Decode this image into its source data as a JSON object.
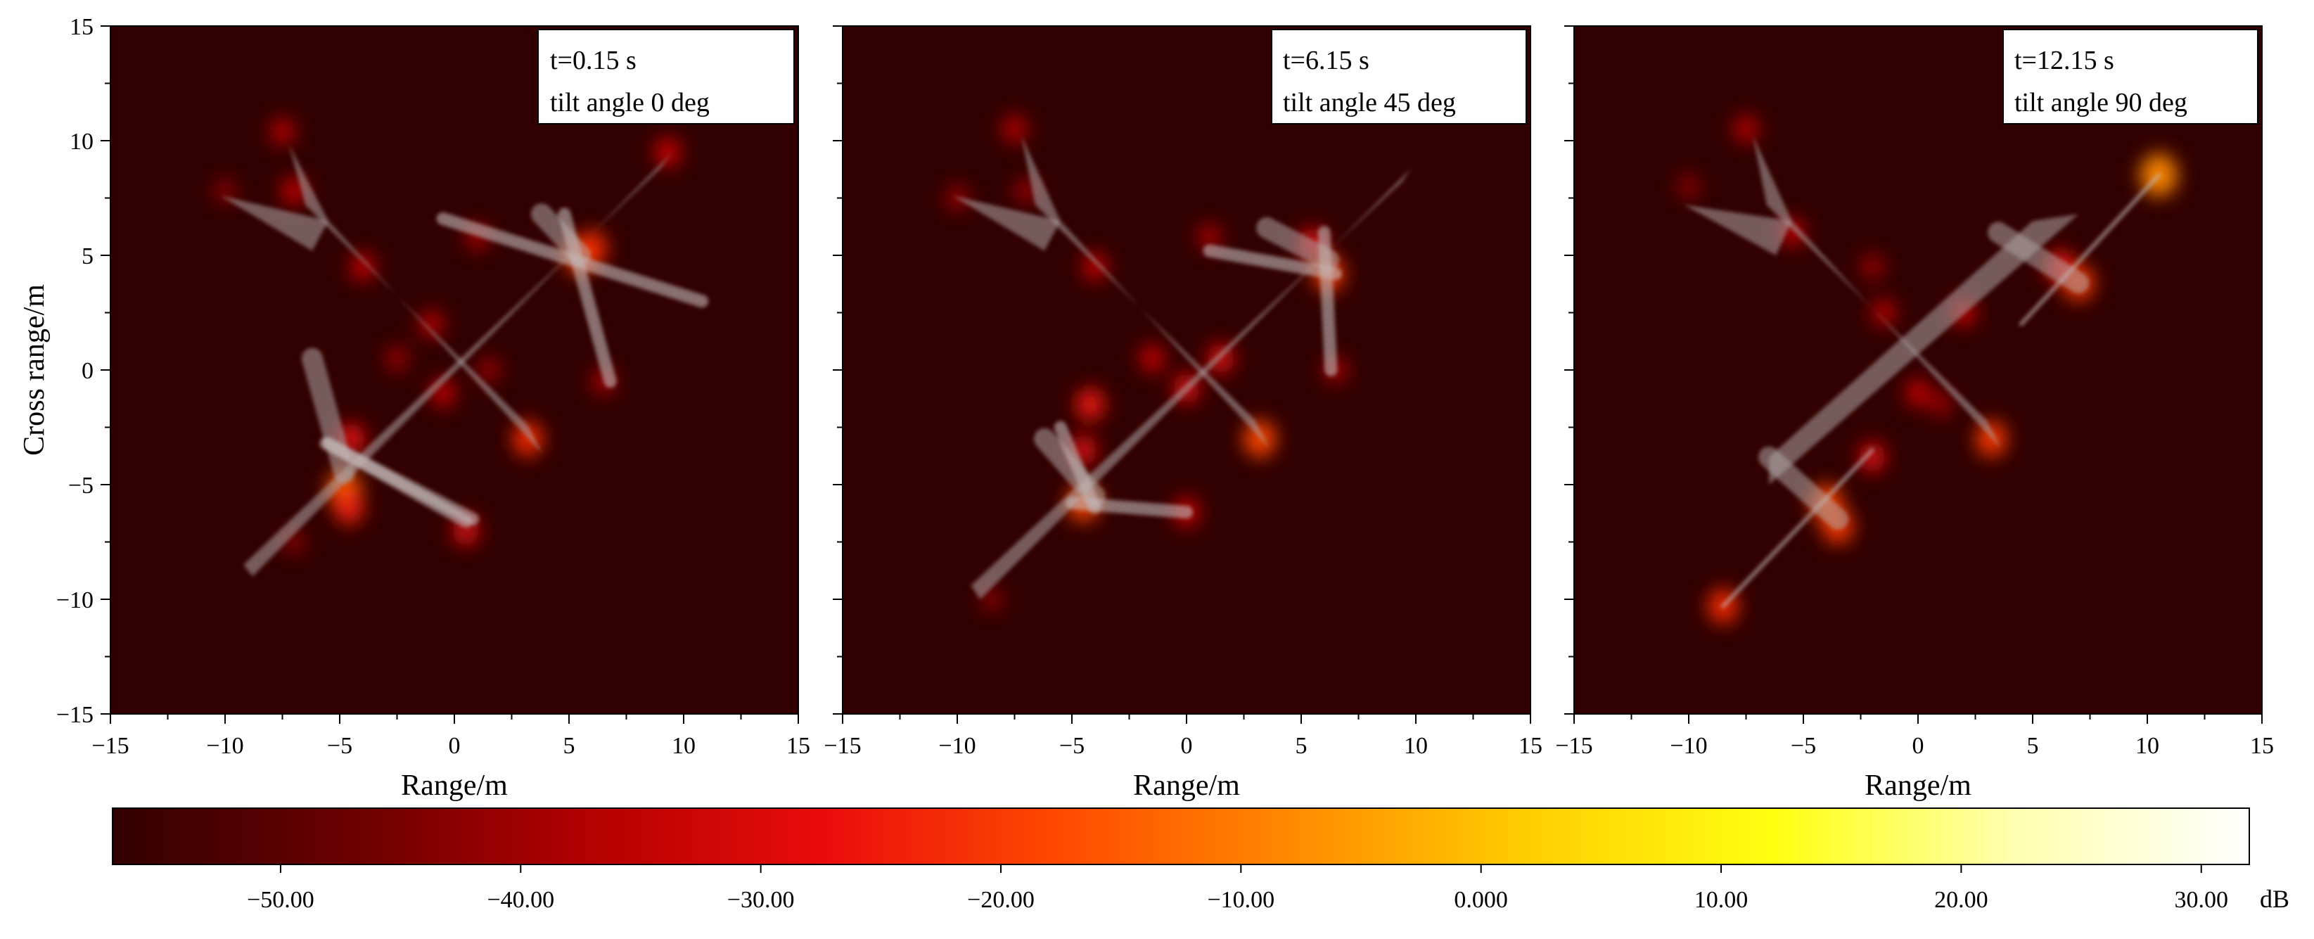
{
  "chart_data": [
    {
      "type": "heatmap",
      "xlabel": "Range/m",
      "ylabel": "Cross range/m",
      "xlim": [
        -15,
        15
      ],
      "ylim": [
        -15,
        15
      ],
      "xticks": [
        -15,
        -10,
        -5,
        0,
        5,
        10,
        15
      ],
      "yticks": [
        15,
        10,
        5,
        0,
        -5,
        -10,
        -15
      ],
      "legend": [
        "t=0.15 s",
        "tilt angle 0 deg"
      ],
      "legend_position": "top-right",
      "background_color": "#320000",
      "model": {
        "fuselage": [
          [
            -7.2,
            9.8
          ],
          [
            -5.5,
            6.5
          ],
          [
            3.8,
            -3.6
          ],
          [
            3.2,
            -2.4
          ],
          [
            -6.5,
            7.2
          ]
        ],
        "tail_wing": [
          [
            -10.2,
            7.6
          ],
          [
            -5.5,
            6.5
          ],
          [
            -6.2,
            5.2
          ],
          [
            -10.2,
            7.6
          ]
        ],
        "main_wing": [
          [
            -8.8,
            -9.0
          ],
          [
            9.5,
            9.5
          ],
          [
            9.0,
            8.8
          ],
          [
            -9.2,
            -8.5
          ]
        ],
        "nacelles": [
          [
            [
              3.8,
              6.8
            ],
            [
              5.5,
              5.0
            ]
          ],
          [
            [
              -6.2,
              0.5
            ],
            [
              -4.8,
              -4.5
            ]
          ]
        ],
        "rotors": [
          [
            [
              -0.5,
              6.6
            ],
            [
              10.8,
              3.0
            ]
          ],
          [
            [
              4.8,
              6.8
            ],
            [
              6.8,
              -0.5
            ]
          ],
          [
            [
              -5.6,
              -3.2
            ],
            [
              0.8,
              -6.5
            ]
          ],
          [
            [
              -5.5,
              -3.2
            ],
            [
              0.5,
              -6.6
            ]
          ]
        ]
      },
      "hotspots": [
        {
          "x": 5.5,
          "y": 5.0,
          "v": -18
        },
        {
          "x": 6.0,
          "y": 5.3,
          "v": -22
        },
        {
          "x": 3.2,
          "y": -3.0,
          "v": -22
        },
        {
          "x": -4.8,
          "y": -5.2,
          "v": -15
        },
        {
          "x": -4.6,
          "y": -6.0,
          "v": -24
        },
        {
          "x": -4.5,
          "y": -3.0,
          "v": -28
        },
        {
          "x": 0.5,
          "y": -7.0,
          "v": -30
        },
        {
          "x": 9.3,
          "y": 9.5,
          "v": -32
        },
        {
          "x": -7.5,
          "y": 10.4,
          "v": -36
        },
        {
          "x": -7.0,
          "y": 7.8,
          "v": -34
        },
        {
          "x": -4.0,
          "y": 4.5,
          "v": -34
        },
        {
          "x": -1.0,
          "y": 2.0,
          "v": -36
        },
        {
          "x": -0.5,
          "y": -1.0,
          "v": -34
        },
        {
          "x": 1.0,
          "y": 5.8,
          "v": -38
        },
        {
          "x": 6.5,
          "y": -0.5,
          "v": -38
        },
        {
          "x": -10.0,
          "y": 7.8,
          "v": -42
        },
        {
          "x": -2.5,
          "y": 0.5,
          "v": -40
        },
        {
          "x": 1.5,
          "y": 0.0,
          "v": -40
        },
        {
          "x": -7.0,
          "y": -7.5,
          "v": -42
        }
      ]
    },
    {
      "type": "heatmap",
      "xlabel": "Range/m",
      "ylabel": "",
      "xlim": [
        -15,
        15
      ],
      "ylim": [
        -15,
        15
      ],
      "xticks": [
        -15,
        -10,
        -5,
        0,
        5,
        10,
        15
      ],
      "yticks": [
        15,
        10,
        5,
        0,
        -5,
        -10,
        -15
      ],
      "legend": [
        "t=6.15 s",
        "tilt angle 45 deg"
      ],
      "legend_position": "top-right",
      "background_color": "#320000",
      "model": {
        "fuselage": [
          [
            -7.2,
            10.2
          ],
          [
            -5.5,
            6.5
          ],
          [
            3.6,
            -3.4
          ],
          [
            3.0,
            -2.2
          ],
          [
            -6.6,
            7.2
          ]
        ],
        "tail_wing": [
          [
            -10.2,
            7.6
          ],
          [
            -5.5,
            6.5
          ],
          [
            -6.2,
            5.2
          ],
          [
            -10.2,
            7.6
          ]
        ],
        "main_wing": [
          [
            -9.0,
            -10.0
          ],
          [
            9.8,
            8.8
          ],
          [
            9.4,
            8.2
          ],
          [
            -9.4,
            -9.4
          ]
        ],
        "nacelles": [
          [
            [
              3.5,
              6.2
            ],
            [
              6.2,
              4.8
            ]
          ],
          [
            [
              -6.2,
              -3.0
            ],
            [
              -4.0,
              -5.5
            ]
          ]
        ],
        "rotors": [
          [
            [
              1.0,
              5.2
            ],
            [
              6.5,
              4.2
            ]
          ],
          [
            [
              6.0,
              6.0
            ],
            [
              6.3,
              0.0
            ]
          ],
          [
            [
              -5.0,
              -5.8
            ],
            [
              0.0,
              -6.2
            ]
          ],
          [
            [
              -5.5,
              -2.5
            ],
            [
              -4.0,
              -6.0
            ]
          ]
        ]
      },
      "hotspots": [
        {
          "x": 6.2,
          "y": 4.2,
          "v": -20
        },
        {
          "x": 5.5,
          "y": 5.5,
          "v": -28
        },
        {
          "x": 3.2,
          "y": -3.0,
          "v": -18
        },
        {
          "x": -4.5,
          "y": -5.8,
          "v": -18
        },
        {
          "x": -4.2,
          "y": -1.5,
          "v": -26
        },
        {
          "x": -4.5,
          "y": -3.5,
          "v": -30
        },
        {
          "x": 0.0,
          "y": -6.2,
          "v": -32
        },
        {
          "x": 1.5,
          "y": 0.5,
          "v": -30
        },
        {
          "x": -1.5,
          "y": 0.5,
          "v": -34
        },
        {
          "x": 0.0,
          "y": -0.8,
          "v": -30
        },
        {
          "x": -7.5,
          "y": 10.5,
          "v": -36
        },
        {
          "x": -4.0,
          "y": 4.5,
          "v": -34
        },
        {
          "x": 1.0,
          "y": 5.8,
          "v": -38
        },
        {
          "x": 6.5,
          "y": 0.0,
          "v": -38
        },
        {
          "x": -10.0,
          "y": 7.5,
          "v": -40
        },
        {
          "x": -7.0,
          "y": 7.8,
          "v": -40
        },
        {
          "x": -8.5,
          "y": -10.0,
          "v": -42
        }
      ]
    },
    {
      "type": "heatmap",
      "xlabel": "Range/m",
      "ylabel": "",
      "xlim": [
        -15,
        15
      ],
      "ylim": [
        -15,
        15
      ],
      "xticks": [
        -15,
        -10,
        -5,
        0,
        5,
        10,
        15
      ],
      "yticks": [
        15,
        10,
        5,
        0,
        -5,
        -10,
        -15
      ],
      "legend": [
        "t=12.15 s",
        "tilt angle 90 deg"
      ],
      "legend_position": "top-right",
      "background_color": "#320000",
      "model": {
        "fuselage": [
          [
            -7.2,
            10.2
          ],
          [
            -5.5,
            6.5
          ],
          [
            3.6,
            -3.4
          ],
          [
            3.0,
            -2.2
          ],
          [
            -6.6,
            7.2
          ]
        ],
        "tail_wing": [
          [
            -10.2,
            7.2
          ],
          [
            -5.5,
            6.5
          ],
          [
            -6.2,
            5.0
          ],
          [
            -10.2,
            7.2
          ]
        ],
        "main_wing": [
          [
            -6.5,
            -5.0
          ],
          [
            7.0,
            6.8
          ],
          [
            5.0,
            6.5
          ],
          [
            -6.5,
            -3.8
          ]
        ],
        "nacelles": [
          [
            [
              3.5,
              6.0
            ],
            [
              7.0,
              3.8
            ]
          ],
          [
            [
              -6.5,
              -3.8
            ],
            [
              -3.5,
              -6.5
            ]
          ]
        ],
        "rotors": [
          [
            [
              4.5,
              2.0
            ],
            [
              10.5,
              8.5
            ]
          ],
          [
            [
              -8.5,
              -10.3
            ],
            [
              -2.0,
              -3.5
            ]
          ]
        ]
      },
      "hotspots": [
        {
          "x": 10.5,
          "y": 8.5,
          "v": -8
        },
        {
          "x": 7.0,
          "y": 3.8,
          "v": -20
        },
        {
          "x": 6.2,
          "y": 4.5,
          "v": -26
        },
        {
          "x": 3.2,
          "y": -3.0,
          "v": -20
        },
        {
          "x": -4.0,
          "y": -5.8,
          "v": -18
        },
        {
          "x": -3.5,
          "y": -6.8,
          "v": -20
        },
        {
          "x": -8.5,
          "y": -10.3,
          "v": -22
        },
        {
          "x": -2.0,
          "y": -3.8,
          "v": -30
        },
        {
          "x": 2.0,
          "y": 2.5,
          "v": -34
        },
        {
          "x": -1.5,
          "y": 2.5,
          "v": -36
        },
        {
          "x": 0.0,
          "y": -1.0,
          "v": -34
        },
        {
          "x": -7.5,
          "y": 10.5,
          "v": -36
        },
        {
          "x": -5.5,
          "y": 6.0,
          "v": -34
        },
        {
          "x": -2.0,
          "y": 4.5,
          "v": -40
        },
        {
          "x": 1.0,
          "y": -1.5,
          "v": -40
        },
        {
          "x": -10.0,
          "y": 8.0,
          "v": -42
        }
      ]
    }
  ],
  "colorbar": {
    "range": [
      -57,
      32
    ],
    "ticks": [
      -50,
      -40,
      -30,
      -20,
      -10,
      0,
      10,
      20,
      30
    ],
    "tick_labels": [
      "−50.00",
      "−40.00",
      "−30.00",
      "−20.00",
      "−10.00",
      "0.000",
      "10.00",
      "20.00",
      "30.00"
    ],
    "unit": "dB",
    "colors": [
      "#320000",
      "#6a0000",
      "#b30000",
      "#ea0c0c",
      "#ff4a00",
      "#ff8c00",
      "#ffd000",
      "#ffff10",
      "#ffffb0",
      "#ffffff"
    ]
  }
}
